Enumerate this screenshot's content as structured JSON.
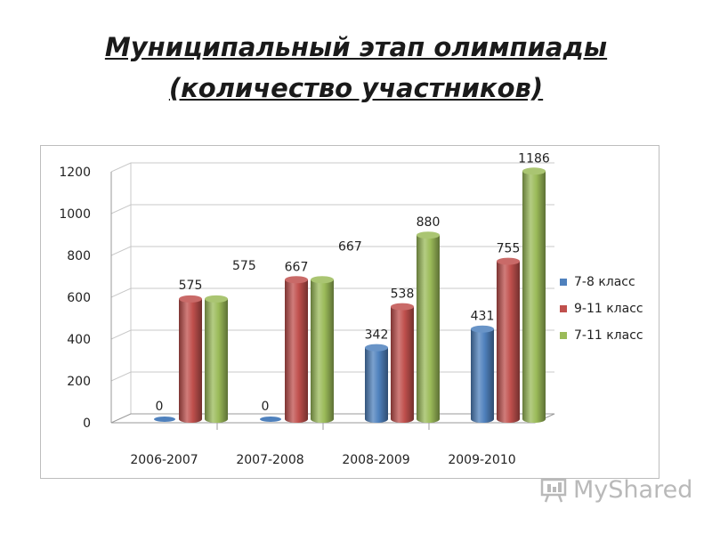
{
  "page": {
    "title_line1": "Муниципальный этап олимпиады",
    "title_line2": "(количество участников)"
  },
  "watermark": {
    "text": "MyShared",
    "icon": "projector-screen-icon"
  },
  "chart_data": {
    "type": "bar",
    "categories": [
      "2006-2007",
      "2007-2008",
      "2008-2009",
      "2009-2010"
    ],
    "series": [
      {
        "name": "7-8 класс",
        "values": [
          0,
          0,
          342,
          431
        ],
        "color": "#4f81bd"
      },
      {
        "name": "9-11 класс",
        "values": [
          575,
          667,
          538,
          755
        ],
        "color": "#c0504d"
      },
      {
        "name": "7-11 класс",
        "values": [
          575,
          667,
          880,
          1186
        ],
        "color": "#9bbb59"
      }
    ],
    "ylim": [
      0,
      1200
    ],
    "yticks": [
      0,
      200,
      400,
      600,
      800,
      1000,
      1200
    ],
    "grid": true,
    "legend": "right",
    "style": "3d-cylinder"
  }
}
